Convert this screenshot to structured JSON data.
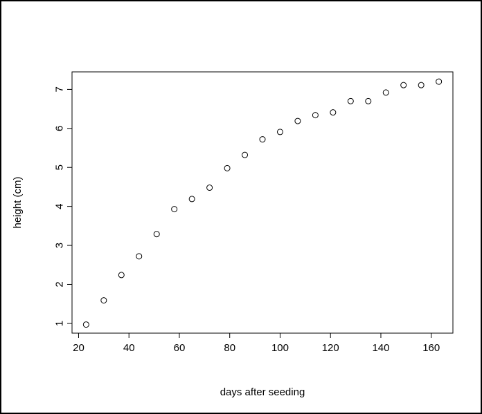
{
  "chart_data": {
    "type": "scatter",
    "title": "",
    "xlabel": "days after seeding",
    "ylabel": "height (cm)",
    "xlim": [
      17.4,
      168.6
    ],
    "ylim": [
      0.75,
      7.45
    ],
    "grid": false,
    "legend": "none",
    "x_ticks": [
      20,
      40,
      60,
      80,
      100,
      120,
      140,
      160
    ],
    "y_ticks": [
      1,
      2,
      3,
      4,
      5,
      6,
      7
    ],
    "x_tick_labels": [
      "20",
      "40",
      "60",
      "80",
      "100",
      "120",
      "140",
      "160"
    ],
    "y_tick_labels": [
      "1",
      "2",
      "3",
      "4",
      "5",
      "6",
      "7"
    ],
    "marker": "open-circle",
    "colors": {
      "points": "#000000",
      "axes": "#000000",
      "background": "#ffffff"
    },
    "x": [
      23,
      30,
      37,
      44,
      51,
      58,
      65,
      72,
      79,
      86,
      93,
      100,
      107,
      114,
      121,
      128,
      135,
      142,
      149,
      156,
      163
    ],
    "y": [
      0.97,
      1.59,
      2.24,
      2.72,
      3.29,
      3.93,
      4.19,
      4.48,
      4.98,
      5.32,
      5.72,
      5.91,
      6.19,
      6.34,
      6.41,
      6.7,
      6.7,
      6.92,
      7.11,
      7.11,
      7.2
    ]
  }
}
